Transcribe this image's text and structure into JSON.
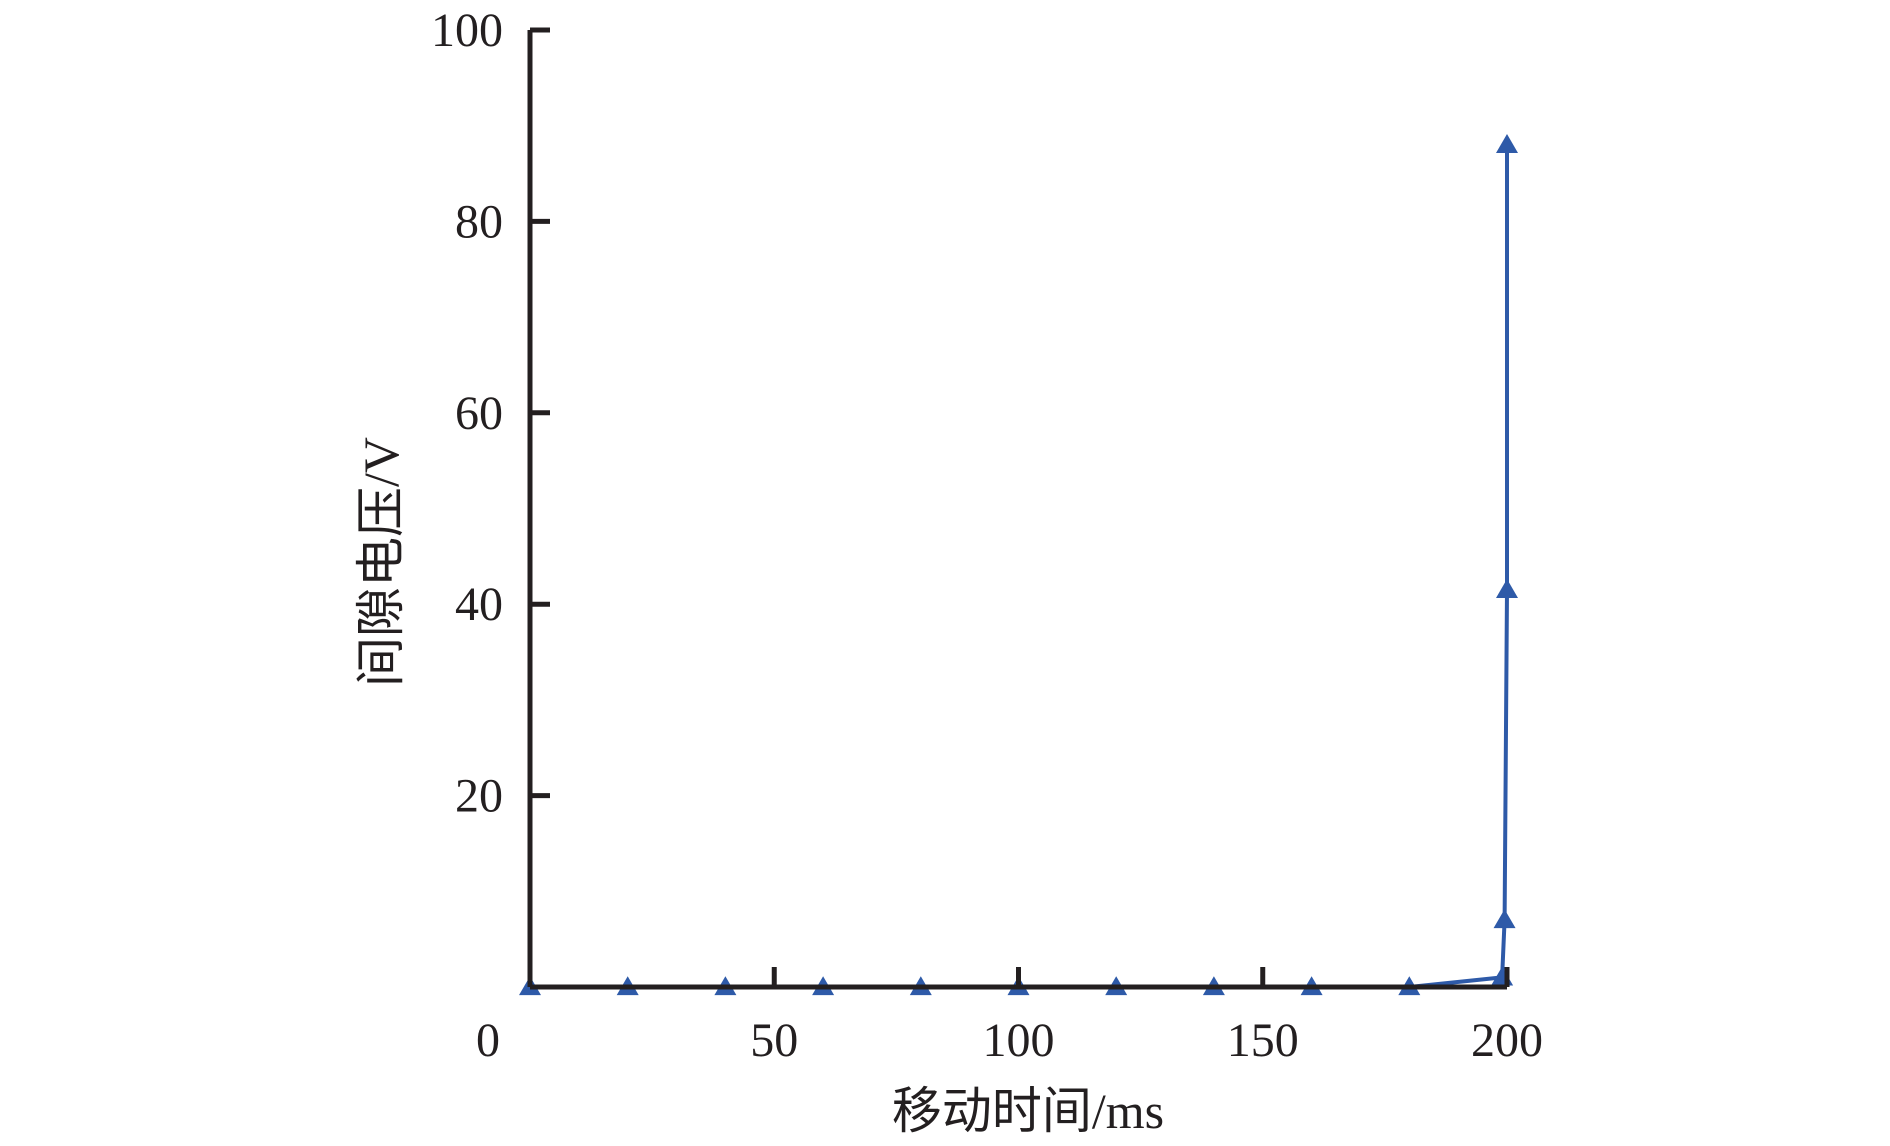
{
  "chart_data": {
    "type": "line",
    "title": "",
    "xlabel": "移动时间/ms",
    "ylabel": "间隙电压/V",
    "xlim": [
      0,
      200
    ],
    "ylim": [
      0,
      100
    ],
    "x_ticks": [
      0,
      50,
      100,
      150,
      200
    ],
    "y_ticks": [
      20,
      40,
      60,
      80,
      100
    ],
    "grid": false,
    "legend": "none",
    "colors": {
      "series": "#2e5aa8",
      "axis": "#231f20"
    },
    "marker": "triangle",
    "series": [
      {
        "x": [
          0,
          20,
          40,
          60,
          80,
          100,
          120,
          140,
          160,
          180,
          199,
          199.5,
          200,
          200
        ],
        "y": [
          0,
          0,
          0,
          0,
          0,
          0,
          0,
          0,
          0,
          0,
          1,
          7,
          41.5,
          88
        ]
      }
    ]
  }
}
